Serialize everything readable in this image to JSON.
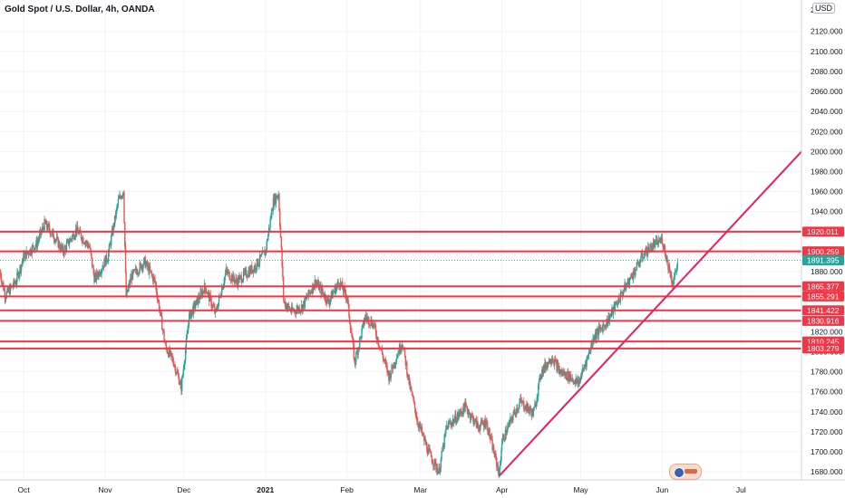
{
  "header": {
    "title": "Gold Spot / U.S. Dollar, 4h, OANDA",
    "currency": "USD"
  },
  "chart_data": {
    "type": "candlestick",
    "symbol": "Gold Spot / U.S. Dollar",
    "interval": "4h",
    "source": "OANDA",
    "ylim": [
      1672,
      2146
    ],
    "y_ticks": [
      1680,
      1700,
      1720,
      1740,
      1760,
      1780,
      1800,
      1820,
      1840,
      1860,
      1880,
      1900,
      1920,
      1940,
      1960,
      1980,
      2000,
      2020,
      2040,
      2060,
      2080,
      2100,
      2120
    ],
    "y_tick_labels": [
      "1680.000",
      "1700.000",
      "1720.000",
      "1740.000",
      "1760.000",
      "1780.000",
      "1800.000",
      "1820.000",
      "1840.000",
      "1860.000",
      "1880.000",
      "1900.000",
      "1920.000",
      "1940.000",
      "1960.000",
      "1980.000",
      "2000.000",
      "2020.000",
      "2040.000",
      "2060.000",
      "2080.000",
      "2100.000",
      "2120.000"
    ],
    "top_tick_label": "21",
    "x_ticks": [
      {
        "label": "Oct",
        "date": "2020-10-01"
      },
      {
        "label": "Nov",
        "date": "2020-11-01"
      },
      {
        "label": "Dec",
        "date": "2020-12-01"
      },
      {
        "label": "2021",
        "date": "2021-01-01"
      },
      {
        "label": "Feb",
        "date": "2021-02-01"
      },
      {
        "label": "Mar",
        "date": "2021-03-01"
      },
      {
        "label": "Apr",
        "date": "2021-04-01"
      },
      {
        "label": "May",
        "date": "2021-05-01"
      },
      {
        "label": "Jun",
        "date": "2021-06-01"
      },
      {
        "label": "Jul",
        "date": "2021-07-01"
      }
    ],
    "x_range": [
      "2020-09-22",
      "2021-07-24"
    ],
    "price_path": [
      [
        "2020-09-22",
        1880
      ],
      [
        "2020-09-24",
        1856
      ],
      [
        "2020-09-28",
        1870
      ],
      [
        "2020-10-01",
        1895
      ],
      [
        "2020-10-06",
        1908
      ],
      [
        "2020-10-09",
        1928
      ],
      [
        "2020-10-12",
        1918
      ],
      [
        "2020-10-16",
        1900
      ],
      [
        "2020-10-21",
        1922
      ],
      [
        "2020-10-26",
        1905
      ],
      [
        "2020-10-28",
        1872
      ],
      [
        "2020-11-02",
        1895
      ],
      [
        "2020-11-06",
        1950
      ],
      [
        "2020-11-08",
        1962
      ],
      [
        "2020-11-09",
        1855
      ],
      [
        "2020-11-11",
        1875
      ],
      [
        "2020-11-16",
        1890
      ],
      [
        "2020-11-20",
        1870
      ],
      [
        "2020-11-24",
        1805
      ],
      [
        "2020-11-27",
        1790
      ],
      [
        "2020-11-30",
        1765
      ],
      [
        "2020-12-03",
        1835
      ],
      [
        "2020-12-09",
        1865
      ],
      [
        "2020-12-13",
        1838
      ],
      [
        "2020-12-17",
        1880
      ],
      [
        "2020-12-21",
        1870
      ],
      [
        "2020-12-28",
        1885
      ],
      [
        "2021-01-01",
        1900
      ],
      [
        "2021-01-04",
        1950
      ],
      [
        "2021-01-06",
        1958
      ],
      [
        "2021-01-08",
        1850
      ],
      [
        "2021-01-11",
        1840
      ],
      [
        "2021-01-15",
        1845
      ],
      [
        "2021-01-20",
        1870
      ],
      [
        "2021-01-25",
        1850
      ],
      [
        "2021-01-29",
        1870
      ],
      [
        "2021-02-01",
        1855
      ],
      [
        "2021-02-04",
        1790
      ],
      [
        "2021-02-08",
        1835
      ],
      [
        "2021-02-11",
        1828
      ],
      [
        "2021-02-17",
        1775
      ],
      [
        "2021-02-22",
        1810
      ],
      [
        "2021-02-25",
        1765
      ],
      [
        "2021-02-28",
        1730
      ],
      [
        "2021-03-04",
        1700
      ],
      [
        "2021-03-08",
        1680
      ],
      [
        "2021-03-11",
        1725
      ],
      [
        "2021-03-15",
        1735
      ],
      [
        "2021-03-18",
        1745
      ],
      [
        "2021-03-23",
        1725
      ],
      [
        "2021-03-26",
        1730
      ],
      [
        "2021-03-31",
        1678
      ],
      [
        "2021-04-01",
        1710
      ],
      [
        "2021-04-05",
        1735
      ],
      [
        "2021-04-08",
        1750
      ],
      [
        "2021-04-13",
        1738
      ],
      [
        "2021-04-16",
        1780
      ],
      [
        "2021-04-20",
        1795
      ],
      [
        "2021-04-23",
        1780
      ],
      [
        "2021-04-27",
        1775
      ],
      [
        "2021-04-30",
        1768
      ],
      [
        "2021-05-03",
        1790
      ],
      [
        "2021-05-06",
        1815
      ],
      [
        "2021-05-11",
        1830
      ],
      [
        "2021-05-14",
        1845
      ],
      [
        "2021-05-18",
        1865
      ],
      [
        "2021-05-21",
        1878
      ],
      [
        "2021-05-25",
        1898
      ],
      [
        "2021-05-28",
        1905
      ],
      [
        "2021-06-01",
        1912
      ],
      [
        "2021-06-03",
        1890
      ],
      [
        "2021-06-05",
        1868
      ],
      [
        "2021-06-07",
        1890
      ]
    ],
    "horizontal_levels": [
      {
        "value": 1920.011,
        "label": "1920.011"
      },
      {
        "value": 1900.259,
        "label": "1900.259"
      },
      {
        "value": 1865.377,
        "label": "1865.377"
      },
      {
        "value": 1855.291,
        "label": "1855.291"
      },
      {
        "value": 1841.422,
        "label": "1841.422"
      },
      {
        "value": 1830.916,
        "label": "1830.916"
      },
      {
        "value": 1810.245,
        "label": "1810.245"
      },
      {
        "value": 1803.279,
        "label": "1803.279"
      }
    ],
    "current_price": {
      "value": 1891.395,
      "label": "1891.395"
    },
    "trendline": {
      "from": [
        "2021-03-31",
        1676
      ],
      "to": [
        "2021-07-24",
        2000
      ]
    },
    "colors": {
      "up": "#26a69a",
      "down": "#ef5350",
      "level_line": "#f23645",
      "trendline": "#e91e63",
      "current_price_badge": "#26a69a",
      "grid": "#f0f3fa",
      "axis_text": "#131722"
    },
    "grid": true
  }
}
